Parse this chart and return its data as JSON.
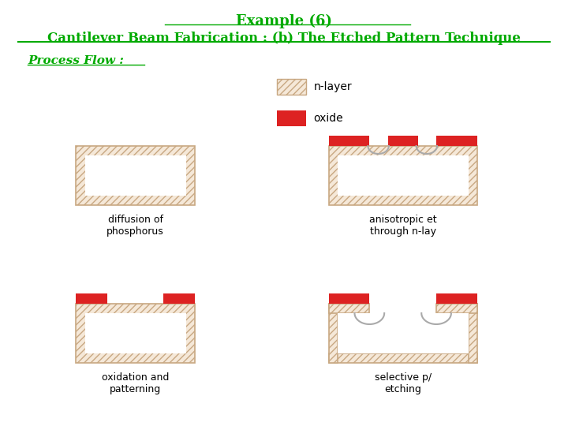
{
  "title_line1": "Example (6)",
  "title_line2": "Cantilever Beam Fabrication : (b) The Etched Pattern Technique",
  "subtitle": "Process Flow :",
  "title_color": "#00aa00",
  "subtitle_color": "#00aa00",
  "bg_color": "#ffffff",
  "hatch_color": "#c8a882",
  "hatch_facecolor": "#f5e8d8",
  "oxide_color": "#dd2222",
  "legend_nlayer_label": "n-layer",
  "legend_oxide_label": "oxide",
  "diagram1_label": "diffusion of\nphosphorus",
  "diagram2_label": "anisotropic et\nthrough n-lay",
  "diagram3_label": "oxidation and\npatterning",
  "diagram4_label": "selective p/\netching"
}
